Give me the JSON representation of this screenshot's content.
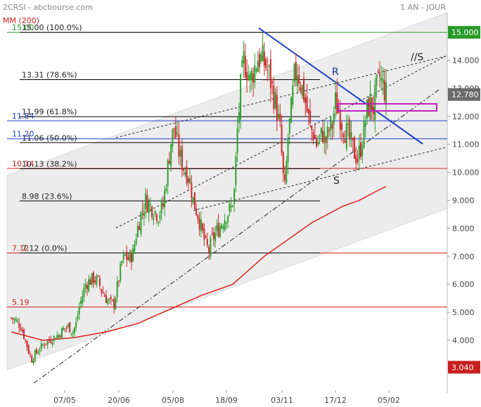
{
  "header": {
    "title": "2CRSI - abcbourse.com",
    "period": "1 AN - JOUR",
    "indicator": "MM (200)"
  },
  "colors": {
    "candle_up": "#2e9e2e",
    "candle_down": "#cc2a2a",
    "ma": "#e02020",
    "fibo": "#000000",
    "trend_blue": "#2040d0",
    "green_level": "#2a9a2a",
    "red_level": "#d02020",
    "zone": "#c020c0",
    "channel_fill": "#ececec"
  },
  "chart_data": {
    "type": "candlestick",
    "y_range": [
      2.75,
      15.65
    ],
    "y_ticks": [
      "4.000",
      "5.000",
      "6.000",
      "7.000",
      "8.000",
      "9.000",
      "10.000",
      "11.000",
      "12.000",
      "13.000",
      "14.000"
    ],
    "x_ticks": [
      "07/05",
      "20/06",
      "05/08",
      "18/09",
      "03/11",
      "17/12",
      "05/02"
    ],
    "last_price": "12.780",
    "price_tags": [
      {
        "label": "15.000",
        "value": 15.0,
        "kind": "green"
      },
      {
        "label": "12.780",
        "value": 12.78,
        "kind": "grey"
      },
      {
        "label": "3.040",
        "value": 3.04,
        "kind": "red"
      }
    ],
    "fibonacci": [
      {
        "value": 15.0,
        "label": "15.00  (100.0%)"
      },
      {
        "value": 13.31,
        "label": "13.31  (78.6%)"
      },
      {
        "value": 11.99,
        "label": "11.99  (61.8%)"
      },
      {
        "value": 11.06,
        "label": "11.06  (50.0%)"
      },
      {
        "value": 10.13,
        "label": "10.13  (38.2%)"
      },
      {
        "value": 8.98,
        "label": "8.98  (23.6%)"
      },
      {
        "value": 7.12,
        "label": "7.12  (0.0%)"
      }
    ],
    "levels": [
      {
        "value": 15.0,
        "label": "15.00",
        "kind": "green"
      },
      {
        "value": 11.84,
        "label": "11.84",
        "kind": "blue"
      },
      {
        "value": 11.2,
        "label": "11.20",
        "kind": "blue"
      },
      {
        "value": 10.14,
        "label": "10.14",
        "kind": "red"
      },
      {
        "value": 7.12,
        "label": "7.12",
        "kind": "red"
      },
      {
        "value": 5.19,
        "label": "5.19",
        "kind": "red"
      }
    ],
    "annotations": [
      "R",
      "S",
      "//S"
    ],
    "close_path": [
      [
        0,
        4.8
      ],
      [
        3,
        4.7
      ],
      [
        6,
        4.5
      ],
      [
        9,
        4.0
      ],
      [
        11,
        3.6
      ],
      [
        13,
        3.3
      ],
      [
        15,
        3.5
      ],
      [
        18,
        3.7
      ],
      [
        21,
        3.9
      ],
      [
        24,
        4.0
      ],
      [
        27,
        4.1
      ],
      [
        30,
        4.2
      ],
      [
        33,
        4.4
      ],
      [
        36,
        4.5
      ],
      [
        39,
        4.3
      ],
      [
        41,
        4.6
      ],
      [
        43,
        5.2
      ],
      [
        45,
        5.6
      ],
      [
        47,
        6.0
      ],
      [
        49,
        6.1
      ],
      [
        52,
        6.2
      ],
      [
        55,
        6.1
      ],
      [
        57,
        5.8
      ],
      [
        60,
        5.5
      ],
      [
        63,
        5.3
      ],
      [
        65,
        5.3
      ],
      [
        68,
        6.2
      ],
      [
        70,
        6.8
      ],
      [
        72,
        7.0
      ],
      [
        74,
        6.9
      ],
      [
        77,
        7.1
      ],
      [
        79,
        7.8
      ],
      [
        82,
        8.5
      ],
      [
        85,
        9.0
      ],
      [
        88,
        8.8
      ],
      [
        91,
        8.6
      ],
      [
        93,
        8.5
      ],
      [
        96,
        8.8
      ],
      [
        99,
        10.2
      ],
      [
        101,
        11.1
      ],
      [
        103,
        11.6
      ],
      [
        105,
        11.0
      ],
      [
        107,
        10.5
      ],
      [
        109,
        10.2
      ],
      [
        111,
        10.0
      ],
      [
        113,
        9.7
      ],
      [
        115,
        9.0
      ],
      [
        118,
        8.5
      ],
      [
        121,
        7.8
      ],
      [
        123,
        7.4
      ],
      [
        125,
        7.2
      ],
      [
        127,
        7.6
      ],
      [
        130,
        7.9
      ],
      [
        133,
        8.2
      ],
      [
        136,
        8.5
      ],
      [
        139,
        8.7
      ],
      [
        141,
        9.3
      ],
      [
        143,
        11.5
      ],
      [
        145,
        13.0
      ],
      [
        147,
        14.0
      ],
      [
        149,
        13.7
      ],
      [
        151,
        13.3
      ],
      [
        153,
        13.6
      ],
      [
        156,
        14.1
      ],
      [
        159,
        14.0
      ],
      [
        161,
        13.8
      ],
      [
        163,
        13.5
      ],
      [
        165,
        13.0
      ],
      [
        167,
        12.5
      ],
      [
        170,
        11.5
      ],
      [
        172,
        9.8
      ],
      [
        173,
        9.4
      ],
      [
        175,
        11.2
      ],
      [
        177,
        12.2
      ],
      [
        179,
        13.4
      ],
      [
        181,
        13.7
      ],
      [
        183,
        13.2
      ],
      [
        185,
        12.8
      ],
      [
        187,
        12.2
      ],
      [
        189,
        11.6
      ],
      [
        191,
        11.4
      ],
      [
        193,
        11.0
      ],
      [
        195,
        11.2
      ],
      [
        197,
        11.4
      ],
      [
        199,
        11.1
      ],
      [
        201,
        11.5
      ],
      [
        203,
        11.7
      ],
      [
        205,
        12.5
      ],
      [
        207,
        12.2
      ],
      [
        209,
        11.8
      ],
      [
        211,
        11.5
      ],
      [
        213,
        11.3
      ],
      [
        215,
        11.0
      ],
      [
        217,
        10.7
      ],
      [
        219,
        10.5
      ],
      [
        221,
        10.9
      ],
      [
        223,
        11.5
      ],
      [
        225,
        12.2
      ],
      [
        227,
        12.5
      ],
      [
        229,
        12.3
      ],
      [
        231,
        13.0
      ],
      [
        233,
        13.4
      ],
      [
        235,
        13.1
      ],
      [
        237,
        12.8
      ]
    ],
    "moving_average": [
      [
        0,
        4.3
      ],
      [
        20,
        4.0
      ],
      [
        40,
        4.1
      ],
      [
        60,
        4.3
      ],
      [
        80,
        4.6
      ],
      [
        100,
        5.1
      ],
      [
        120,
        5.6
      ],
      [
        130,
        5.8
      ],
      [
        140,
        6.0
      ],
      [
        150,
        6.5
      ],
      [
        160,
        7.0
      ],
      [
        170,
        7.4
      ],
      [
        180,
        7.8
      ],
      [
        190,
        8.2
      ],
      [
        200,
        8.5
      ],
      [
        210,
        8.8
      ],
      [
        220,
        9.0
      ],
      [
        230,
        9.3
      ],
      [
        237,
        9.5
      ]
    ]
  }
}
